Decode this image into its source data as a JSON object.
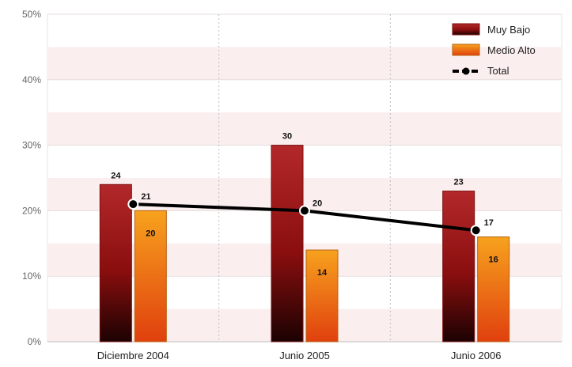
{
  "chart_data": {
    "type": "bar",
    "title": "",
    "xlabel": "",
    "ylabel": "",
    "categories": [
      "Diciembre 2004",
      "Junio 2005",
      "Junio 2006"
    ],
    "series": [
      {
        "name": "Muy Bajo",
        "type": "bar",
        "values": [
          24,
          30,
          23
        ],
        "value_labels": [
          "24",
          "30",
          "23"
        ],
        "color": "#b81c1c"
      },
      {
        "name": "Medio Alto",
        "type": "bar",
        "values": [
          20,
          14,
          16
        ],
        "value_labels": [
          "20",
          "14",
          "16"
        ],
        "color": "#f08a14"
      },
      {
        "name": "Total",
        "type": "line",
        "values": [
          21,
          20,
          17
        ],
        "value_labels": [
          "21",
          "20",
          "17"
        ],
        "color": "#000000"
      }
    ],
    "ylim": [
      0,
      50
    ],
    "yticks": [
      "0%",
      "10%",
      "20%",
      "30%",
      "40%",
      "50%"
    ],
    "grid": true,
    "legend_position": "top-right"
  }
}
